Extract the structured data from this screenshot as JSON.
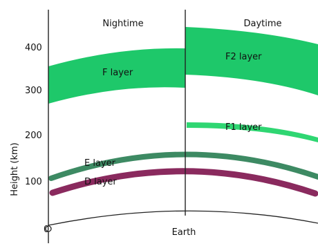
{
  "headers": {
    "night": "Nightime",
    "day": "Daytime"
  },
  "axis": {
    "title": "Height (km)",
    "ticks": [
      "400",
      "300",
      "200",
      "100"
    ],
    "origin": "0"
  },
  "layers": {
    "night_f": "F layer",
    "day_f2": "F2 layer",
    "day_f1": "F1 layer",
    "e": "E layer",
    "d": "D layer"
  },
  "ground_label": "Earth",
  "colors": {
    "f_layer": "#1ec86a",
    "f1_layer": "#2fd672",
    "e_layer": "#3d8a63",
    "d_layer": "#8a2a5e",
    "axis": "#222222"
  }
}
